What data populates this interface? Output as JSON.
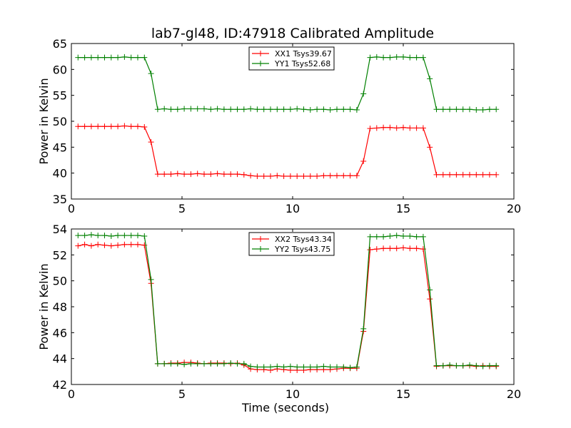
{
  "chart_data": [
    {
      "type": "line",
      "title": "lab7-gl48, ID:47918 Calibrated Amplitude",
      "xlabel": "",
      "ylabel": "Power in Kelvin",
      "xlim": [
        0,
        20
      ],
      "ylim": [
        35,
        65
      ],
      "xticks": [
        "0",
        "5",
        "10",
        "15",
        "20"
      ],
      "yticks": [
        "35",
        "40",
        "45",
        "50",
        "55",
        "60",
        "65"
      ],
      "grid": false,
      "legend_position": "top-center",
      "x": [
        0.3,
        0.6,
        0.9,
        1.2,
        1.5,
        1.8,
        2.1,
        2.4,
        2.7,
        3.0,
        3.3,
        3.6,
        3.9,
        4.2,
        4.5,
        4.8,
        5.1,
        5.4,
        5.7,
        6.0,
        6.3,
        6.6,
        6.9,
        7.2,
        7.5,
        7.8,
        8.1,
        8.4,
        8.7,
        9.0,
        9.3,
        9.6,
        9.9,
        10.2,
        10.5,
        10.8,
        11.1,
        11.4,
        11.7,
        12.0,
        12.3,
        12.6,
        12.9,
        13.2,
        13.5,
        13.8,
        14.1,
        14.4,
        14.7,
        15.0,
        15.3,
        15.6,
        15.9,
        16.2,
        16.5,
        16.8,
        17.1,
        17.4,
        17.7,
        18.0,
        18.3,
        18.6,
        18.9,
        19.2
      ],
      "series": [
        {
          "name": "XX1 Tsys39.67",
          "color": "#ff0000",
          "values": [
            49.0,
            49.0,
            49.0,
            49.0,
            49.0,
            49.0,
            49.0,
            49.1,
            49.0,
            49.0,
            48.9,
            46.0,
            39.8,
            39.8,
            39.8,
            39.9,
            39.8,
            39.8,
            39.9,
            39.8,
            39.8,
            39.9,
            39.8,
            39.8,
            39.8,
            39.7,
            39.5,
            39.4,
            39.4,
            39.4,
            39.5,
            39.4,
            39.4,
            39.4,
            39.4,
            39.4,
            39.4,
            39.5,
            39.5,
            39.5,
            39.5,
            39.5,
            39.5,
            42.3,
            48.6,
            48.7,
            48.8,
            48.8,
            48.7,
            48.8,
            48.7,
            48.7,
            48.7,
            45.0,
            39.7,
            39.7,
            39.7,
            39.7,
            39.7,
            39.7,
            39.7,
            39.7,
            39.7,
            39.7
          ]
        },
        {
          "name": "YY1 Tsys52.68",
          "color": "#008000",
          "values": [
            62.3,
            62.3,
            62.3,
            62.3,
            62.3,
            62.3,
            62.3,
            62.4,
            62.3,
            62.3,
            62.3,
            59.2,
            52.3,
            52.4,
            52.3,
            52.3,
            52.4,
            52.4,
            52.4,
            52.4,
            52.3,
            52.4,
            52.3,
            52.3,
            52.3,
            52.3,
            52.4,
            52.3,
            52.3,
            52.3,
            52.3,
            52.3,
            52.3,
            52.4,
            52.3,
            52.2,
            52.3,
            52.3,
            52.2,
            52.3,
            52.3,
            52.3,
            52.2,
            55.3,
            62.3,
            62.4,
            62.3,
            62.3,
            62.4,
            62.4,
            62.3,
            62.3,
            62.3,
            58.2,
            52.3,
            52.3,
            52.3,
            52.3,
            52.3,
            52.3,
            52.2,
            52.2,
            52.3,
            52.3
          ]
        }
      ]
    },
    {
      "type": "line",
      "title": "",
      "xlabel": "Time (seconds)",
      "ylabel": "Power in Kelvin",
      "xlim": [
        0,
        20
      ],
      "ylim": [
        42,
        54
      ],
      "xticks": [
        "0",
        "5",
        "10",
        "15",
        "20"
      ],
      "yticks": [
        "42",
        "44",
        "46",
        "48",
        "50",
        "52",
        "54"
      ],
      "grid": false,
      "legend_position": "top-center",
      "x": [
        0.3,
        0.6,
        0.9,
        1.2,
        1.5,
        1.8,
        2.1,
        2.4,
        2.7,
        3.0,
        3.3,
        3.6,
        3.9,
        4.2,
        4.5,
        4.8,
        5.1,
        5.4,
        5.7,
        6.0,
        6.3,
        6.6,
        6.9,
        7.2,
        7.5,
        7.8,
        8.1,
        8.4,
        8.7,
        9.0,
        9.3,
        9.6,
        9.9,
        10.2,
        10.5,
        10.8,
        11.1,
        11.4,
        11.7,
        12.0,
        12.3,
        12.6,
        12.9,
        13.2,
        13.5,
        13.8,
        14.1,
        14.4,
        14.7,
        15.0,
        15.3,
        15.6,
        15.9,
        16.2,
        16.5,
        16.8,
        17.1,
        17.4,
        17.7,
        18.0,
        18.3,
        18.6,
        18.9,
        19.2
      ],
      "series": [
        {
          "name": "XX2 Tsys43.34",
          "color": "#ff0000",
          "values": [
            52.7,
            52.8,
            52.7,
            52.8,
            52.75,
            52.7,
            52.75,
            52.8,
            52.8,
            52.8,
            52.75,
            49.8,
            43.6,
            43.6,
            43.65,
            43.65,
            43.7,
            43.7,
            43.65,
            43.6,
            43.65,
            43.65,
            43.65,
            43.6,
            43.65,
            43.5,
            43.2,
            43.15,
            43.15,
            43.1,
            43.2,
            43.15,
            43.1,
            43.1,
            43.1,
            43.15,
            43.15,
            43.15,
            43.15,
            43.2,
            43.25,
            43.25,
            43.25,
            46.1,
            52.4,
            52.45,
            52.5,
            52.5,
            52.5,
            52.55,
            52.5,
            52.5,
            52.45,
            48.6,
            43.4,
            43.45,
            43.45,
            43.45,
            43.45,
            43.45,
            43.4,
            43.45,
            43.4,
            43.4
          ]
        },
        {
          "name": "YY2 Tsys43.75",
          "color": "#008000",
          "values": [
            53.5,
            53.5,
            53.55,
            53.5,
            53.5,
            53.45,
            53.5,
            53.5,
            53.5,
            53.5,
            53.45,
            50.1,
            43.6,
            43.6,
            43.6,
            43.6,
            43.55,
            43.6,
            43.6,
            43.6,
            43.6,
            43.6,
            43.6,
            43.65,
            43.6,
            43.6,
            43.4,
            43.35,
            43.35,
            43.35,
            43.4,
            43.35,
            43.4,
            43.35,
            43.35,
            43.35,
            43.35,
            43.4,
            43.35,
            43.35,
            43.35,
            43.3,
            43.35,
            46.3,
            53.4,
            53.4,
            53.4,
            53.45,
            53.5,
            53.45,
            53.45,
            53.4,
            53.4,
            49.3,
            43.45,
            43.45,
            43.5,
            43.45,
            43.45,
            43.5,
            43.45,
            43.4,
            43.45,
            43.45
          ]
        }
      ]
    }
  ]
}
